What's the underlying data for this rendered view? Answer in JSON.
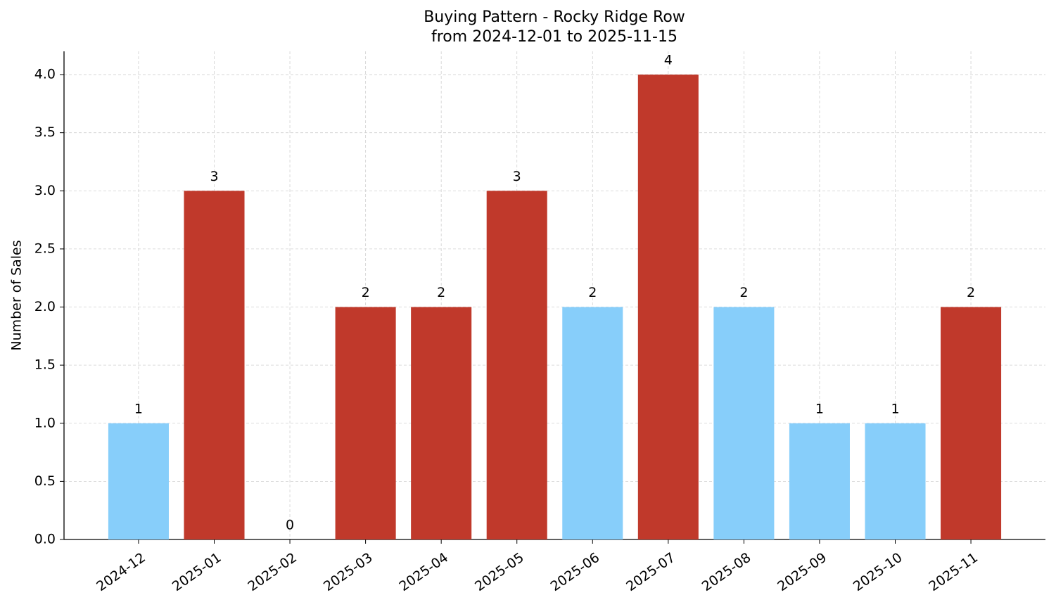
{
  "chart_data": {
    "type": "bar",
    "title": "Buying Pattern - Rocky Ridge Row",
    "subtitle": "from 2024-12-01 to 2025-11-15",
    "y_label": "Number of Sales",
    "categories": [
      "2024-12",
      "2025-01",
      "2025-02",
      "2025-03",
      "2025-04",
      "2025-05",
      "2025-06",
      "2025-07",
      "2025-08",
      "2025-09",
      "2025-10",
      "2025-11"
    ],
    "values": [
      1,
      3,
      0,
      2,
      2,
      3,
      2,
      4,
      2,
      1,
      1,
      2
    ],
    "colors": [
      "#87cefa",
      "#c0392b",
      "#c0392b",
      "#c0392b",
      "#c0392b",
      "#c0392b",
      "#87cefa",
      "#c0392b",
      "#87cefa",
      "#87cefa",
      "#87cefa",
      "#c0392b"
    ],
    "ylim": [
      0,
      4.2
    ],
    "yticks": [
      {
        "value": 0,
        "label": "0.0"
      },
      0.5,
      {
        "value": 1,
        "label": "1.0"
      },
      1.5,
      {
        "value": 2,
        "label": "2.0"
      },
      2.5,
      {
        "value": 3,
        "label": "3.0"
      },
      3.5,
      {
        "value": 4,
        "label": "4.0"
      }
    ],
    "grid": true
  }
}
